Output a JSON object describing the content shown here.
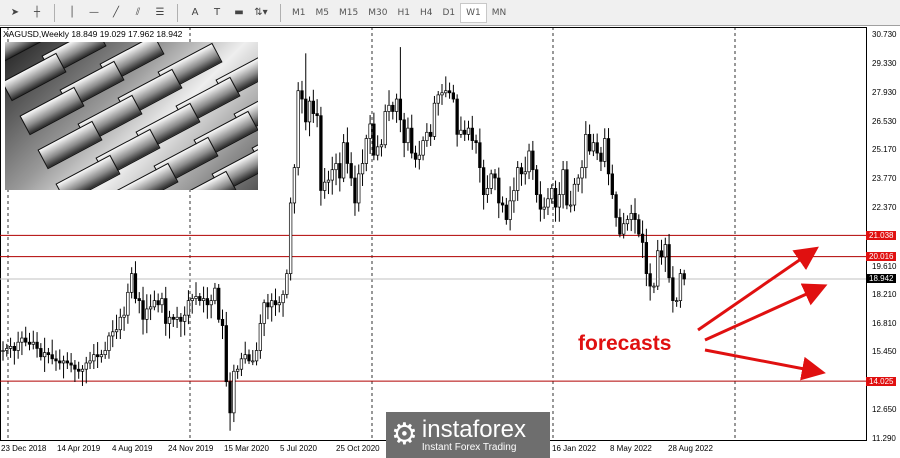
{
  "toolbar": {
    "tools": [
      {
        "icon": "cursor-icon",
        "glyph": "➤"
      },
      {
        "icon": "crosshair-icon",
        "glyph": "┼"
      },
      {
        "icon": "vertical-line-icon",
        "glyph": "│"
      },
      {
        "icon": "horizontal-line-icon",
        "glyph": "—"
      },
      {
        "icon": "trendline-icon",
        "glyph": "╱"
      },
      {
        "icon": "equidistant-channel-icon",
        "glyph": "⫽"
      },
      {
        "icon": "fibonacci-icon",
        "glyph": "☰"
      },
      {
        "icon": "text-icon",
        "glyph": "A"
      },
      {
        "icon": "text-label-icon",
        "glyph": "T"
      },
      {
        "icon": "rectangle-icon",
        "glyph": "▬"
      },
      {
        "icon": "arrows-icon",
        "glyph": "⇅▾"
      }
    ],
    "timeframes": [
      "M1",
      "M5",
      "M15",
      "M30",
      "H1",
      "H4",
      "D1",
      "W1",
      "MN"
    ],
    "active_timeframe": "W1"
  },
  "chart": {
    "caption": "XAGUSD,Weekly  18.849 19.029 17.962 18.942",
    "annotation": "forecasts",
    "watermark": {
      "name": "instaforex",
      "tagline": "Instant Forex Trading"
    }
  },
  "chart_data": {
    "type": "candlestick",
    "symbol": "XAGUSD",
    "timeframe": "Weekly",
    "ohlc_last": {
      "open": 18.849,
      "high": 19.029,
      "low": 17.962,
      "close": 18.942
    },
    "ylim": [
      11.29,
      30.73
    ],
    "y_ticks": [
      "30.730",
      "29.330",
      "27.930",
      "26.530",
      "25.170",
      "23.770",
      "22.370",
      "19.610",
      "18.210",
      "16.810",
      "15.450",
      "12.650",
      "11.290"
    ],
    "x_ticks": [
      "23 Dec 2018",
      "14 Apr 2019",
      "4 Aug 2019",
      "24 Nov 2019",
      "15 Mar 2020",
      "5 Jul 2020",
      "25 Oct 2020",
      "16 Jan 2022",
      "8 May 2022",
      "28 Aug 2022"
    ],
    "levels": [
      {
        "value": "21.038",
        "color": "#e01010"
      },
      {
        "value": "20.016",
        "color": "#e01010"
      },
      {
        "value": "14.025",
        "color": "#e01010"
      }
    ],
    "current_price": {
      "value": "18.942",
      "color": "#000000"
    },
    "candle_color": "#000000",
    "weekly_closes": [
      15.5,
      15.6,
      15.7,
      15.5,
      15.9,
      16.1,
      15.9,
      15.8,
      15.9,
      15.6,
      15.2,
      15.4,
      15.3,
      15.1,
      15.0,
      14.9,
      15.0,
      14.9,
      14.8,
      14.6,
      14.5,
      14.6,
      14.9,
      15.0,
      15.3,
      15.2,
      15.3,
      15.5,
      16.2,
      16.4,
      16.5,
      17.1,
      17.2,
      18.3,
      19.2,
      18.0,
      17.9,
      17.0,
      17.5,
      17.6,
      17.9,
      17.7,
      18.0,
      16.8,
      17.1,
      17.0,
      17.1,
      16.9,
      17.2,
      17.9,
      18.0,
      18.1,
      17.9,
      18.0,
      17.7,
      17.9,
      18.5,
      17.0,
      16.7,
      14.0,
      12.5,
      14.5,
      14.6,
      15.1,
      15.3,
      15.0,
      15.0,
      15.5,
      16.8,
      17.8,
      17.6,
      17.9,
      17.7,
      17.8,
      18.2,
      19.2,
      22.6,
      24.3,
      28.0,
      27.6,
      26.5,
      27.5,
      26.9,
      26.8,
      23.2,
      23.6,
      23.7,
      24.2,
      24.5,
      23.8,
      25.5,
      24.5,
      23.8,
      22.6,
      24.0,
      24.5,
      25.7,
      26.4,
      24.9,
      25.3,
      25.4,
      27.0,
      27.3,
      27.0,
      27.6,
      26.6,
      25.5,
      26.2,
      25.0,
      24.7,
      24.9,
      25.6,
      26.0,
      25.8,
      27.4,
      27.8,
      27.9,
      28.0,
      27.9,
      27.6,
      25.9,
      26.1,
      25.9,
      26.2,
      25.6,
      25.5,
      24.3,
      23.0,
      23.3,
      24.0,
      23.8,
      22.6,
      22.5,
      21.8,
      22.7,
      23.2,
      24.3,
      24.0,
      24.1,
      25.1,
      24.2,
      23.0,
      22.3,
      22.4,
      22.8,
      23.3,
      22.4,
      23.0,
      24.2,
      22.5,
      22.5,
      23.5,
      23.8,
      24.3,
      25.9,
      25.1,
      25.5,
      25.0,
      24.6,
      25.7,
      24.0,
      23.0,
      21.9,
      21.1,
      21.6,
      21.8,
      22.1,
      21.8,
      21.1,
      20.7,
      19.2,
      18.6,
      18.6,
      20.3,
      20.0,
      20.6,
      19.0,
      17.9,
      17.9,
      19.2,
      18.942
    ],
    "extreme_highs": {
      "80": 29.8,
      "105": 30.1
    },
    "extreme_lows": {
      "60": 11.64
    },
    "grid": false,
    "arrow_color": "#e01010"
  }
}
